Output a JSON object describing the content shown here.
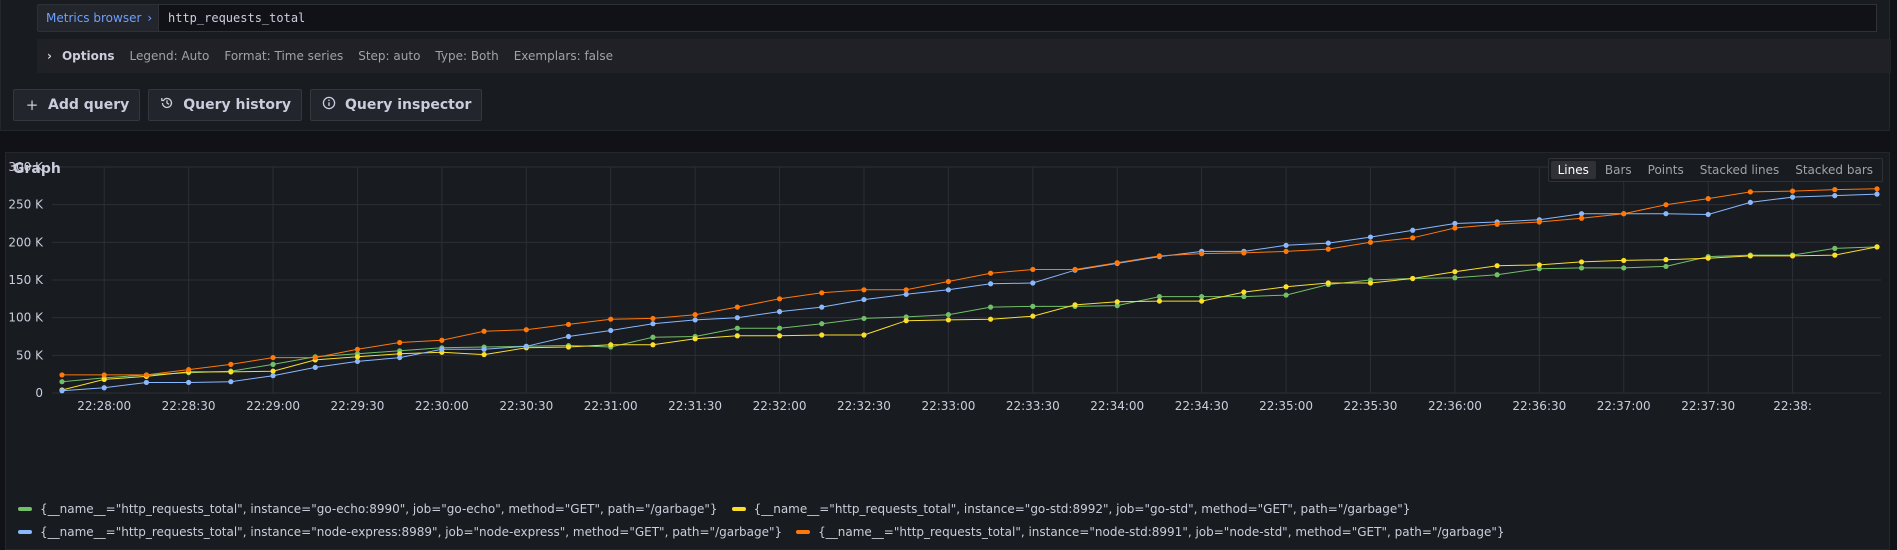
{
  "query": {
    "metrics_browser_label": "Metrics browser",
    "expression": "http_requests_total"
  },
  "options": {
    "title": "Options",
    "items": [
      "Legend: Auto",
      "Format: Time series",
      "Step: auto",
      "Type: Both",
      "Exemplars: false"
    ]
  },
  "actions": {
    "add_query": "Add query",
    "query_history": "Query history",
    "query_inspector": "Query inspector"
  },
  "graph": {
    "title": "Graph",
    "modes": [
      "Lines",
      "Bars",
      "Points",
      "Stacked lines",
      "Stacked bars"
    ],
    "active_mode": "Lines"
  },
  "colors": {
    "green": "#73bf69",
    "yellow": "#fade2a",
    "blue": "#8ab8ff",
    "orange": "#ff780a",
    "grid": "#2c2f36"
  },
  "chart_data": {
    "type": "line",
    "ylim": [
      0,
      300000
    ],
    "y_ticks": [
      "0",
      "50 K",
      "100 K",
      "150 K",
      "200 K",
      "250 K",
      "300 K"
    ],
    "x_ticks": [
      "22:28:00",
      "22:28:30",
      "22:29:00",
      "22:29:30",
      "22:30:00",
      "22:30:30",
      "22:31:00",
      "22:31:30",
      "22:32:00",
      "22:32:30",
      "22:33:00",
      "22:33:30",
      "22:34:00",
      "22:34:30",
      "22:35:00",
      "22:35:30",
      "22:36:00",
      "22:36:30",
      "22:37:00",
      "22:37:30",
      "22:38:"
    ],
    "x_start": "22:27:45",
    "x_step_seconds": 15,
    "series": [
      {
        "name": "{__name__=\"http_requests_total\", instance=\"go-echo:8990\", job=\"go-echo\", method=\"GET\", path=\"/garbage\"}",
        "color": "#73bf69",
        "values": [
          15000,
          20000,
          24000,
          27000,
          29000,
          38000,
          48000,
          52000,
          56000,
          60000,
          61000,
          62000,
          63000,
          61000,
          74000,
          75000,
          86000,
          86000,
          92000,
          99000,
          101000,
          104000,
          114000,
          115000,
          115000,
          116000,
          128000,
          128000,
          128000,
          130000,
          144000,
          150000,
          152000,
          153000,
          157000,
          165000,
          166000,
          166000,
          168000,
          181000,
          183000,
          183000,
          192000,
          194000
        ]
      },
      {
        "name": "{__name__=\"http_requests_total\", instance=\"go-std:8992\", job=\"go-std\", method=\"GET\", path=\"/garbage\"}",
        "color": "#fade2a",
        "values": [
          4000,
          18000,
          22000,
          28000,
          28000,
          29000,
          44000,
          48000,
          52000,
          54000,
          51000,
          60000,
          61000,
          64000,
          64000,
          72000,
          76000,
          76000,
          77000,
          77000,
          96000,
          97000,
          98000,
          102000,
          117000,
          121000,
          122000,
          122000,
          134000,
          141000,
          146000,
          146000,
          152000,
          161000,
          169000,
          170000,
          174000,
          176000,
          177000,
          179000,
          182000,
          182000,
          183000,
          194000
        ]
      },
      {
        "name": "{__name__=\"http_requests_total\", instance=\"node-express:8989\", job=\"node-express\", method=\"GET\", path=\"/garbage\"}",
        "color": "#8ab8ff",
        "values": [
          3000,
          7000,
          14000,
          14000,
          15000,
          23000,
          34000,
          42000,
          47000,
          58000,
          58000,
          62000,
          75000,
          83000,
          92000,
          97000,
          100000,
          108000,
          114000,
          124000,
          131000,
          137000,
          145000,
          146000,
          163000,
          172000,
          181000,
          188000,
          188000,
          196000,
          199000,
          207000,
          216000,
          225000,
          227000,
          230000,
          238000,
          238000,
          238000,
          237000,
          253000,
          260000,
          262000,
          264000
        ]
      },
      {
        "name": "{__name__=\"http_requests_total\", instance=\"node-std:8991\", job=\"node-std\", method=\"GET\", path=\"/garbage\"}",
        "color": "#ff780a",
        "values": [
          24000,
          24000,
          24000,
          31000,
          38000,
          47000,
          47000,
          58000,
          67000,
          70000,
          82000,
          84000,
          91000,
          98000,
          99000,
          104000,
          114000,
          125000,
          133000,
          137000,
          137000,
          148000,
          159000,
          164000,
          164000,
          173000,
          182000,
          185000,
          186000,
          188000,
          191000,
          200000,
          206000,
          219000,
          224000,
          227000,
          232000,
          238000,
          250000,
          258000,
          267000,
          268000,
          270000,
          271000
        ]
      }
    ]
  }
}
